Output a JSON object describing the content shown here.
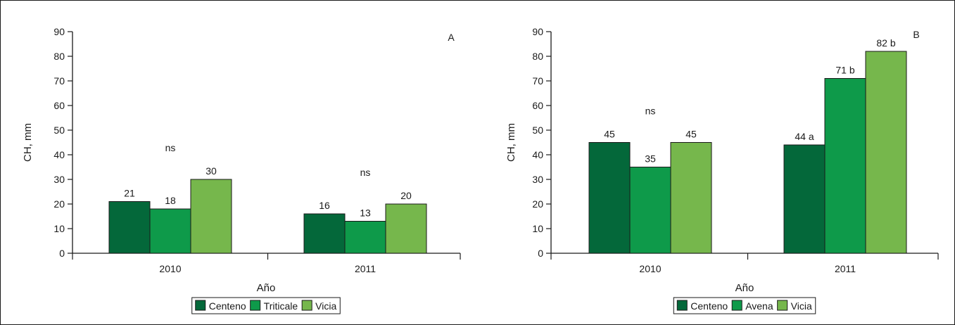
{
  "colors": {
    "series": [
      "#04683a",
      "#0e9a4a",
      "#76b74c"
    ],
    "frame": "#1a1a1a"
  },
  "chart_data": [
    {
      "type": "bar",
      "panel_letter": "A",
      "categories": [
        "2010",
        "2011"
      ],
      "series": [
        {
          "name": "Centeno",
          "values": [
            21,
            16
          ]
        },
        {
          "name": "Triticale",
          "values": [
            18,
            13
          ]
        },
        {
          "name": "Vicia",
          "values": [
            30,
            20
          ]
        }
      ],
      "value_labels": [
        [
          "21",
          "16"
        ],
        [
          "18",
          "13"
        ],
        [
          "30",
          "20"
        ]
      ],
      "group_annotations": [
        "ns",
        "ns"
      ],
      "xlabel": "Año",
      "ylabel": "CH, mm",
      "ylim": [
        0,
        90
      ],
      "yticks": [
        0,
        10,
        20,
        30,
        40,
        50,
        60,
        70,
        80,
        90
      ],
      "grid": false,
      "legend_position": "bottom-center"
    },
    {
      "type": "bar",
      "panel_letter": "B",
      "categories": [
        "2010",
        "2011"
      ],
      "series": [
        {
          "name": "Centeno",
          "values": [
            45,
            44
          ]
        },
        {
          "name": "Avena",
          "values": [
            35,
            71
          ]
        },
        {
          "name": "Vicia",
          "values": [
            45,
            82
          ]
        }
      ],
      "value_labels": [
        [
          "45",
          "44 a"
        ],
        [
          "35",
          "71 b"
        ],
        [
          "45",
          "82 b"
        ]
      ],
      "group_annotations": [
        "ns",
        ""
      ],
      "xlabel": "Año",
      "ylabel": "CH, mm",
      "ylim": [
        0,
        90
      ],
      "yticks": [
        0,
        10,
        20,
        30,
        40,
        50,
        60,
        70,
        80,
        90
      ],
      "grid": false,
      "legend_position": "bottom-center"
    }
  ]
}
